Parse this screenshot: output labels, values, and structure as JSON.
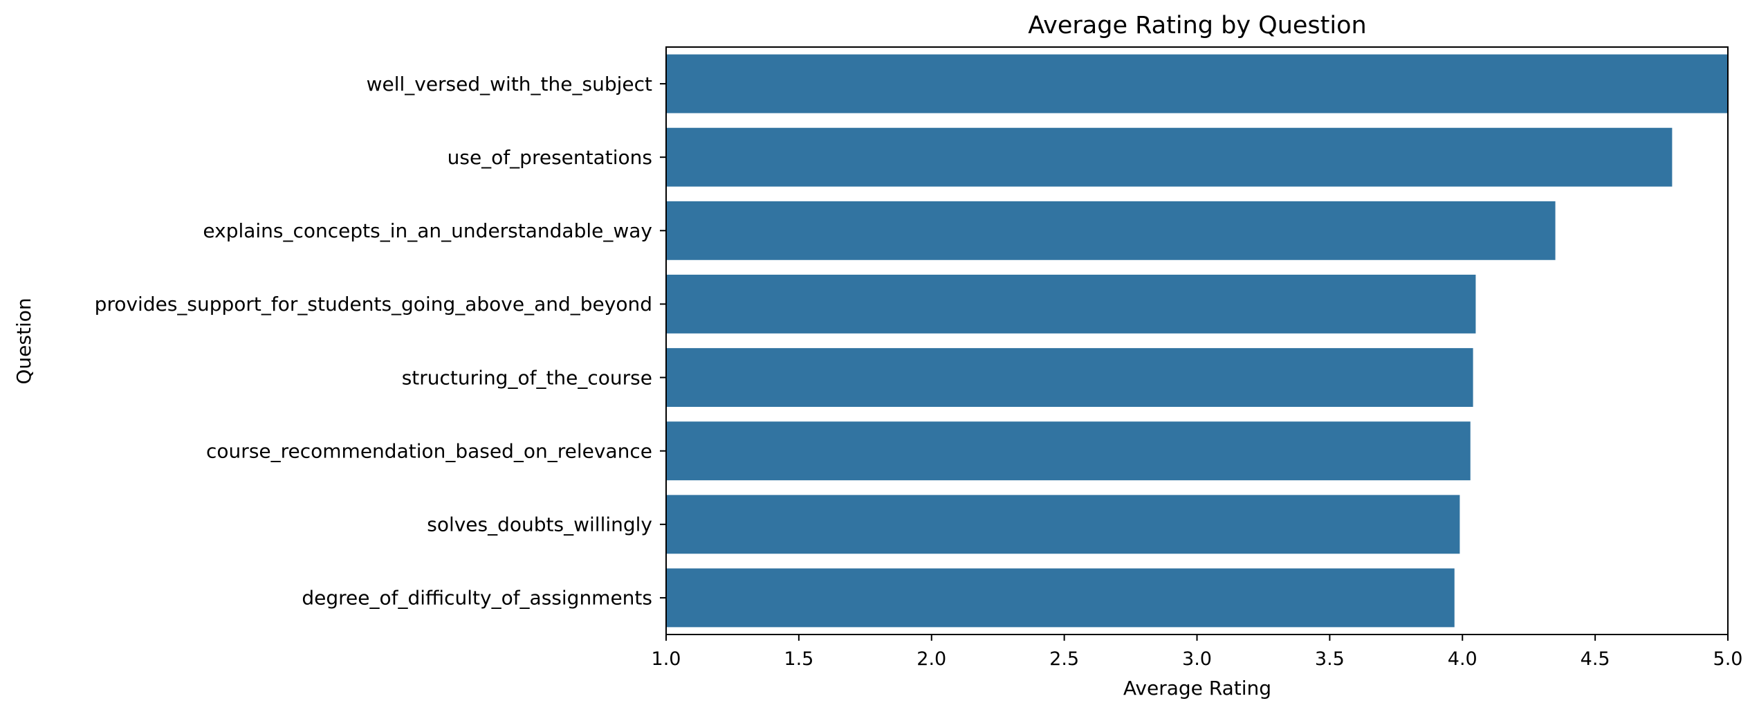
{
  "chart_data": {
    "type": "bar",
    "orientation": "horizontal",
    "title": "Average Rating by Question",
    "xlabel": "Average Rating",
    "ylabel": "Question",
    "xlim": [
      1.0,
      5.0
    ],
    "xticks": [
      1.0,
      1.5,
      2.0,
      2.5,
      3.0,
      3.5,
      4.0,
      4.5,
      5.0
    ],
    "xtick_labels": [
      "1.0",
      "1.5",
      "2.0",
      "2.5",
      "3.0",
      "3.5",
      "4.0",
      "4.5",
      "5.0"
    ],
    "grid": false,
    "legend": "none",
    "bar_color": "#3274a1",
    "categories": [
      "well_versed_with_the_subject",
      "use_of_presentations",
      "explains_concepts_in_an_understandable_way",
      "provides_support_for_students_going_above_and_beyond",
      "structuring_of_the_course",
      "course_recommendation_based_on_relevance",
      "solves_doubts_willingly",
      "degree_of_difficulty_of_assignments"
    ],
    "values": [
      5.0,
      4.79,
      4.35,
      4.05,
      4.04,
      4.03,
      3.99,
      3.97
    ]
  }
}
